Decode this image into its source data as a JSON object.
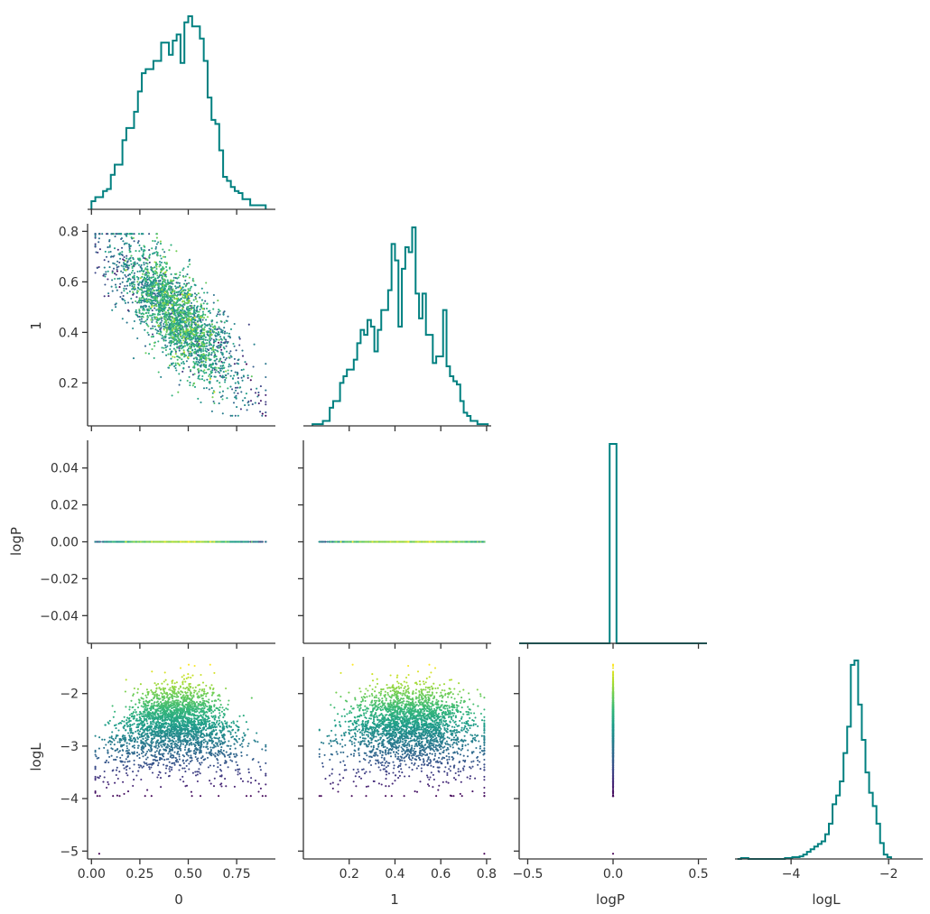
{
  "chart_data": {
    "type": "corner",
    "parameters": [
      "0",
      "1",
      "logP",
      "logL"
    ],
    "axes_labels": {
      "x": [
        "0",
        "1",
        "logP",
        "logL"
      ],
      "y": [
        "1",
        "logP",
        "logL"
      ]
    },
    "ticks": {
      "0": {
        "values": [
          0.0,
          0.25,
          0.5,
          0.75
        ],
        "labels": [
          "0.00",
          "0.25",
          "0.50",
          "0.75"
        ],
        "range": [
          -0.02,
          0.95
        ]
      },
      "1_x": {
        "values": [
          0.2,
          0.4,
          0.6,
          0.8
        ],
        "labels": [
          "0.2",
          "0.4",
          "0.6",
          "0.8"
        ],
        "range": [
          0.0,
          0.82
        ]
      },
      "1_y": {
        "values": [
          0.2,
          0.4,
          0.6,
          0.8
        ],
        "labels": [
          "0.2",
          "0.4",
          "0.6",
          "0.8"
        ],
        "range": [
          0.03,
          0.83
        ]
      },
      "logP_x": {
        "values": [
          -0.5,
          0.0,
          0.5
        ],
        "labels": [
          "−0.5",
          "0.0",
          "0.5"
        ],
        "range": [
          -0.55,
          0.55
        ]
      },
      "logP_y": {
        "values": [
          -0.04,
          -0.02,
          0.0,
          0.02,
          0.04
        ],
        "labels": [
          "−0.04",
          "−0.02",
          "0.00",
          "0.02",
          "0.04"
        ],
        "range": [
          -0.055,
          0.055
        ]
      },
      "logL_y": {
        "values": [
          -5,
          -4,
          -3,
          -2
        ],
        "labels": [
          "−5",
          "−4",
          "−3",
          "−2"
        ],
        "range": [
          -5.15,
          -1.3
        ]
      },
      "logL_x": {
        "values": [
          -4,
          -2
        ],
        "labels": [
          "−4",
          "−2"
        ],
        "range": [
          -5.15,
          -1.3
        ]
      }
    },
    "histograms": {
      "0": {
        "bin_start": 0.0,
        "bin_width": 0.02,
        "counts": [
          4,
          6,
          6,
          9,
          10,
          17,
          22,
          22,
          34,
          40,
          40,
          48,
          58,
          67,
          69,
          69,
          73,
          73,
          82,
          82,
          76,
          83,
          86,
          72,
          92,
          95,
          90,
          90,
          84,
          73,
          55,
          44,
          42,
          29,
          16,
          14,
          11,
          9,
          8,
          5,
          5,
          2,
          2,
          2,
          2
        ]
      },
      "1": {
        "bin_start": 0.04,
        "bin_width": 0.015,
        "counts": [
          1,
          1,
          1,
          3,
          3,
          11,
          15,
          15,
          26,
          30,
          34,
          34,
          40,
          50,
          58,
          55,
          64,
          60,
          45,
          58,
          70,
          70,
          82,
          110,
          100,
          60,
          95,
          108,
          105,
          120,
          80,
          65,
          80,
          55,
          55,
          38,
          42,
          42,
          70,
          36,
          30,
          27,
          25,
          15,
          8,
          6,
          3,
          3,
          1,
          1,
          1
        ]
      },
      "logP": {
        "bins": [
          -0.5,
          -0.02,
          0.02,
          0.5
        ],
        "counts": [
          0,
          1,
          0
        ]
      },
      "logL": {
        "bin_start": -5.1,
        "bin_width": 0.075,
        "counts": [
          0,
          1,
          1,
          0,
          0,
          0,
          0,
          0,
          0,
          0,
          0,
          0,
          0,
          1,
          1,
          2,
          2,
          3,
          5,
          8,
          11,
          14,
          17,
          20,
          28,
          40,
          62,
          72,
          88,
          120,
          150,
          220,
          225,
          175,
          135,
          98,
          75,
          60,
          40,
          18,
          5,
          2
        ]
      }
    },
    "scatter": {
      "series": "posterior samples colored by logL (viridis)",
      "colormap": "viridis",
      "panels": [
        {
          "x": "0",
          "y": "1",
          "approx_ranges": {
            "x": [
              0.02,
              0.9
            ],
            "y": [
              0.07,
              0.8
            ]
          },
          "trend": "negative correlation"
        },
        {
          "x": "0",
          "y": "logP",
          "note": "all points at logP = 0.0"
        },
        {
          "x": "1",
          "y": "logP",
          "note": "all points at logP = 0.0"
        },
        {
          "x": "0",
          "y": "logL",
          "approx_ranges": {
            "x": [
              0.02,
              0.9
            ],
            "y": [
              -5.05,
              -1.45
            ]
          }
        },
        {
          "x": "1",
          "y": "logL",
          "approx_ranges": {
            "x": [
              0.05,
              0.8
            ],
            "y": [
              -5.05,
              -1.45
            ]
          }
        },
        {
          "x": "logP",
          "y": "logL",
          "note": "all points at logP = 0.0, logL from -5.05 to -1.45"
        }
      ],
      "outliers": [
        {
          "x0": 0.04,
          "x1": 0.79,
          "logL": -5.05
        }
      ]
    },
    "grid": false,
    "legend": "none"
  },
  "colors": {
    "histogram": "#008080",
    "axis": "#333333",
    "background": "#ffffff",
    "viridis": [
      "#440154",
      "#3b528b",
      "#21918c",
      "#5ec962",
      "#fde725"
    ]
  }
}
